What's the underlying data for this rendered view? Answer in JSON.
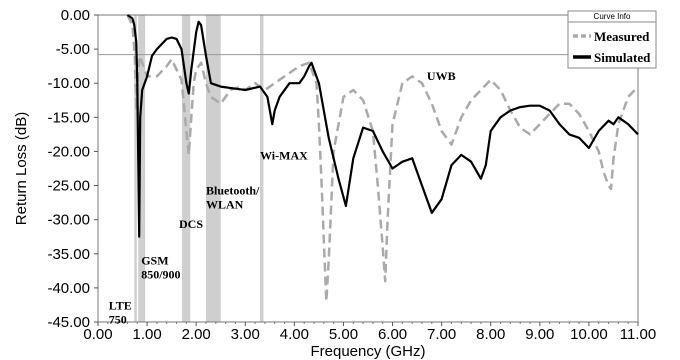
{
  "chart_data": {
    "type": "line",
    "xlabel": "Frequency (GHz)",
    "ylabel": "Return Loss (dB)",
    "xlim": [
      0,
      11
    ],
    "ylim": [
      -45,
      0
    ],
    "x_ticks": [
      "0.00",
      "1.00",
      "2.00",
      "3.00",
      "4.00",
      "5.00",
      "6.00",
      "7.00",
      "8.00",
      "9.00",
      "10.00",
      "11.00"
    ],
    "y_ticks": [
      "0.00",
      "-5.00",
      "-10.00",
      "-15.00",
      "-20.00",
      "-25.00",
      "-30.00",
      "-35.00",
      "-40.00",
      "-45.00"
    ],
    "grid": false,
    "legend": {
      "header": "Curve Info",
      "placement": "top-right",
      "entries": [
        "Measured",
        "Simulated"
      ]
    },
    "bands": [
      {
        "label": "LTE\n750",
        "x0": 0.74,
        "x1": 0.79,
        "label_x": 0.22,
        "label_y": -43.2
      },
      {
        "label": "GSM\n850/900",
        "x0": 0.82,
        "x1": 0.96,
        "label_x": 0.88,
        "label_y": -36.6
      },
      {
        "label": "DCS",
        "x0": 1.71,
        "x1": 1.88,
        "label_x": 1.65,
        "label_y": -31.2
      },
      {
        "label": "Bluetooth/\nWLAN",
        "x0": 2.2,
        "x1": 2.5,
        "label_x": 2.2,
        "label_y": -26.3
      },
      {
        "label": "Wi-MAX",
        "x0": 3.3,
        "x1": 3.37,
        "label_x": 3.3,
        "label_y": -21.2
      },
      {
        "label": "UWB",
        "x0": null,
        "x1": null,
        "label_x": 6.7,
        "label_y": -9.5
      }
    ],
    "series": [
      {
        "name": "Measured",
        "color": "#aaaaaa",
        "dash": true,
        "x": [
          0.6,
          0.7,
          0.75,
          0.78,
          0.8,
          0.85,
          0.9,
          1.0,
          1.2,
          1.4,
          1.5,
          1.7,
          1.8,
          1.85,
          1.9,
          1.95,
          2.0,
          2.1,
          2.2,
          2.3,
          2.5,
          2.7,
          2.9,
          3.0,
          3.2,
          3.4,
          3.6,
          3.9,
          4.1,
          4.3,
          4.45,
          4.5,
          4.55,
          4.6,
          4.65,
          4.7,
          4.8,
          5.0,
          5.2,
          5.4,
          5.6,
          5.7,
          5.8,
          5.85,
          5.9,
          6.0,
          6.2,
          6.4,
          6.6,
          6.8,
          7.0,
          7.2,
          7.4,
          7.6,
          7.8,
          8.0,
          8.2,
          8.4,
          8.6,
          8.8,
          9.0,
          9.2,
          9.4,
          9.6,
          9.8,
          10.0,
          10.2,
          10.3,
          10.4,
          10.45,
          10.5,
          10.6,
          10.8,
          11.0
        ],
        "y": [
          0,
          -1.5,
          -6,
          -14,
          -10,
          -6,
          -7,
          -9,
          -9,
          -7.5,
          -6.5,
          -9.5,
          -17,
          -20.5,
          -15,
          -10,
          -8,
          -7,
          -10,
          -12,
          -13,
          -11,
          -10.5,
          -11,
          -10,
          -11,
          -10,
          -8.5,
          -7.5,
          -7,
          -10,
          -16,
          -24,
          -33,
          -42,
          -36,
          -20,
          -12,
          -11,
          -12.5,
          -17,
          -25,
          -34,
          -39,
          -30,
          -16,
          -10,
          -9,
          -10,
          -13,
          -17,
          -19,
          -15,
          -12.5,
          -11,
          -9.5,
          -11,
          -14,
          -16.5,
          -17.5,
          -16,
          -14.5,
          -13,
          -13,
          -14.5,
          -17,
          -20,
          -23,
          -25,
          -25.5,
          -21,
          -16,
          -12,
          -10.5
        ]
      },
      {
        "name": "Simulated",
        "color": "#000000",
        "dash": false,
        "x": [
          0.6,
          0.7,
          0.74,
          0.78,
          0.8,
          0.82,
          0.84,
          0.86,
          0.9,
          1.0,
          1.1,
          1.2,
          1.4,
          1.5,
          1.6,
          1.7,
          1.8,
          1.85,
          1.9,
          2.0,
          2.05,
          2.1,
          2.2,
          2.3,
          2.5,
          2.8,
          3.0,
          3.3,
          3.45,
          3.55,
          3.6,
          3.7,
          3.9,
          4.1,
          4.2,
          4.3,
          4.35,
          4.5,
          4.7,
          4.9,
          5.05,
          5.2,
          5.4,
          5.6,
          5.8,
          6.0,
          6.2,
          6.4,
          6.6,
          6.8,
          7.0,
          7.2,
          7.4,
          7.6,
          7.8,
          7.9,
          8.0,
          8.2,
          8.4,
          8.6,
          8.8,
          9.0,
          9.2,
          9.4,
          9.6,
          9.8,
          10.0,
          10.2,
          10.4,
          10.5,
          10.6,
          10.8,
          11.0
        ],
        "y": [
          0,
          -0.5,
          -1.5,
          -4,
          -10,
          -22,
          -32.5,
          -15,
          -11,
          -9,
          -6,
          -5,
          -3.5,
          -3.3,
          -3.5,
          -5,
          -10,
          -11.5,
          -8,
          -2.5,
          -1,
          -1.5,
          -6,
          -10,
          -10.5,
          -10.8,
          -11,
          -10.5,
          -12,
          -16,
          -14,
          -12,
          -10,
          -10,
          -9,
          -7.5,
          -7,
          -10,
          -18,
          -24,
          -28,
          -21,
          -16.5,
          -17,
          -20,
          -22.5,
          -21.5,
          -21,
          -25,
          -29,
          -27,
          -22,
          -20.5,
          -21.5,
          -24,
          -22,
          -17,
          -15,
          -14,
          -13.5,
          -13.3,
          -13.3,
          -14,
          -16,
          -17.5,
          -18,
          -19.5,
          -17,
          -15.5,
          -16,
          -15,
          -16,
          -17.5
        ]
      }
    ]
  }
}
